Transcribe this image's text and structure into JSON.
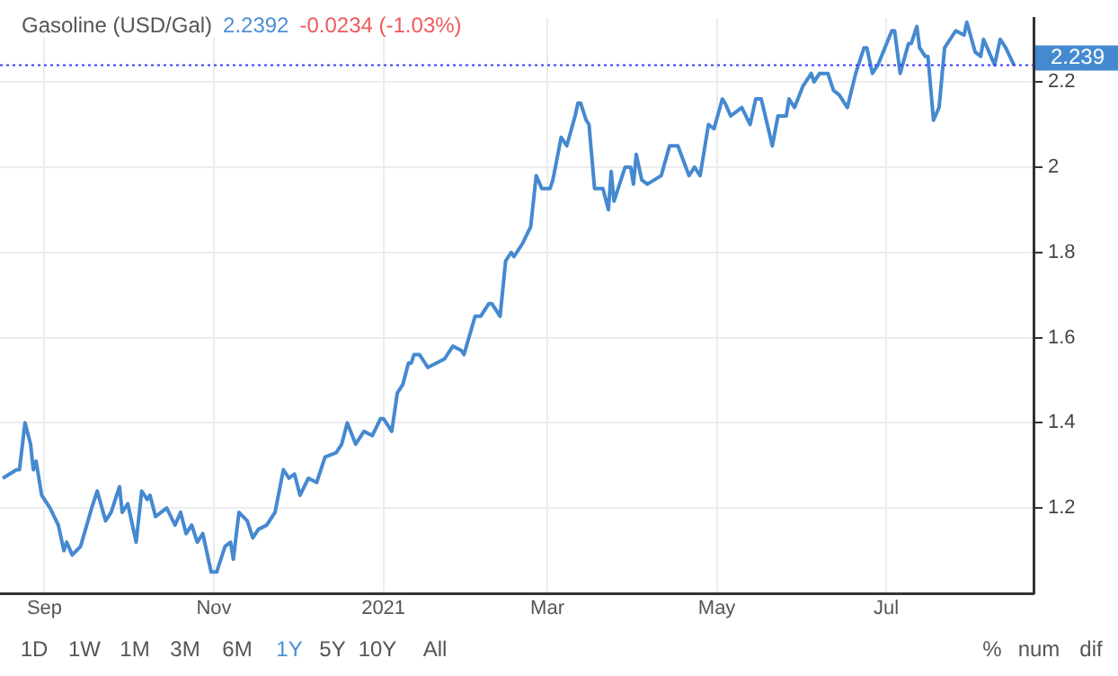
{
  "chart_data": {
    "type": "line",
    "title": "Gasoline (USD/Gal)",
    "annotations": [
      "2.2392",
      "-0.0234 (-1.03%)",
      "1D",
      "1W",
      "1M",
      "3M",
      "6M",
      "1Y",
      "5Y",
      "10Y",
      "All",
      "%",
      "num",
      "dif"
    ],
    "x": [
      "2020-08-17",
      "2020-08-22",
      "2020-08-23",
      "2020-08-25",
      "2020-08-27",
      "2020-08-28",
      "2020-08-29",
      "2020-08-31",
      "2020-09-03",
      "2020-09-06",
      "2020-09-08",
      "2020-09-09",
      "2020-09-11",
      "2020-09-14",
      "2020-09-18",
      "2020-09-20",
      "2020-09-23",
      "2020-09-25",
      "2020-09-28",
      "2020-09-29",
      "2020-10-01",
      "2020-10-04",
      "2020-10-06",
      "2020-10-08",
      "2020-10-09",
      "2020-10-11",
      "2020-10-15",
      "2020-10-18",
      "2020-10-20",
      "2020-10-22",
      "2020-10-24",
      "2020-10-26",
      "2020-10-28",
      "2020-10-31",
      "2020-11-02",
      "2020-11-05",
      "2020-11-07",
      "2020-11-08",
      "2020-11-10",
      "2020-11-13",
      "2020-11-15",
      "2020-11-17",
      "2020-11-20",
      "2020-11-23",
      "2020-11-26",
      "2020-11-28",
      "2020-11-30",
      "2020-12-02",
      "2020-12-05",
      "2020-12-08",
      "2020-12-11",
      "2020-12-15",
      "2020-12-17",
      "2020-12-19",
      "2020-12-22",
      "2020-12-25",
      "2020-12-28",
      "2020-12-31",
      "2021-01-01",
      "2021-01-04",
      "2021-01-06",
      "2021-01-08",
      "2021-01-10",
      "2021-01-11",
      "2021-01-12",
      "2021-01-14",
      "2021-01-17",
      "2021-01-20",
      "2021-01-23",
      "2021-01-26",
      "2021-01-29",
      "2021-01-30",
      "2021-02-03",
      "2021-02-05",
      "2021-02-08",
      "2021-02-09",
      "2021-02-12",
      "2021-02-14",
      "2021-02-16",
      "2021-02-17",
      "2021-02-20",
      "2021-02-23",
      "2021-02-25",
      "2021-02-27",
      "2021-03-02",
      "2021-03-03",
      "2021-03-06",
      "2021-03-08",
      "2021-03-11",
      "2021-03-12",
      "2021-03-13",
      "2021-03-15",
      "2021-03-16",
      "2021-03-18",
      "2021-03-21",
      "2021-03-23",
      "2021-03-24",
      "2021-03-25",
      "2021-03-29",
      "2021-03-31",
      "2021-04-01",
      "2021-04-02",
      "2021-04-04",
      "2021-04-06",
      "2021-04-11",
      "2021-04-14",
      "2021-04-17",
      "2021-04-21",
      "2021-04-23",
      "2021-04-25",
      "2021-04-28",
      "2021-04-30",
      "2021-05-03",
      "2021-05-04",
      "2021-05-06",
      "2021-05-10",
      "2021-05-13",
      "2021-05-15",
      "2021-05-17",
      "2021-05-21",
      "2021-05-23",
      "2021-05-26",
      "2021-05-27",
      "2021-05-29",
      "2021-06-01",
      "2021-06-04",
      "2021-06-05",
      "2021-06-07",
      "2021-06-10",
      "2021-06-12",
      "2021-06-14",
      "2021-06-17",
      "2021-06-20",
      "2021-06-23",
      "2021-06-24",
      "2021-06-26",
      "2021-06-28",
      "2021-07-03",
      "2021-07-04",
      "2021-07-06",
      "2021-07-09",
      "2021-07-10",
      "2021-07-12",
      "2021-07-13",
      "2021-07-15",
      "2021-07-16",
      "2021-07-18",
      "2021-07-20",
      "2021-07-22",
      "2021-07-26",
      "2021-07-29",
      "2021-07-30",
      "2021-08-02",
      "2021-08-04",
      "2021-08-05",
      "2021-08-09",
      "2021-08-11",
      "2021-08-13",
      "2021-08-16"
    ],
    "series": [
      {
        "color": "#4589d0",
        "values": [
          1.27,
          1.29,
          1.29,
          1.4,
          1.35,
          1.29,
          1.31,
          1.23,
          1.2,
          1.16,
          1.1,
          1.12,
          1.09,
          1.11,
          1.2,
          1.24,
          1.17,
          1.19,
          1.25,
          1.19,
          1.21,
          1.12,
          1.24,
          1.22,
          1.23,
          1.18,
          1.2,
          1.16,
          1.19,
          1.14,
          1.16,
          1.12,
          1.14,
          1.05,
          1.05,
          1.11,
          1.12,
          1.08,
          1.19,
          1.17,
          1.13,
          1.15,
          1.16,
          1.19,
          1.29,
          1.27,
          1.28,
          1.23,
          1.27,
          1.26,
          1.32,
          1.33,
          1.35,
          1.4,
          1.35,
          1.38,
          1.37,
          1.41,
          1.41,
          1.38,
          1.47,
          1.49,
          1.54,
          1.54,
          1.56,
          1.56,
          1.53,
          1.54,
          1.55,
          1.58,
          1.57,
          1.56,
          1.65,
          1.65,
          1.68,
          1.68,
          1.65,
          1.78,
          1.8,
          1.79,
          1.82,
          1.86,
          1.98,
          1.95,
          1.95,
          1.97,
          2.07,
          2.05,
          2.12,
          2.15,
          2.15,
          2.11,
          2.1,
          1.95,
          1.95,
          1.9,
          1.99,
          1.92,
          2,
          2,
          1.96,
          2.03,
          1.97,
          1.96,
          1.98,
          2.05,
          2.05,
          1.98,
          2,
          1.98,
          2.1,
          2.09,
          2.16,
          2.15,
          2.12,
          2.14,
          2.1,
          2.16,
          2.16,
          2.05,
          2.12,
          2.12,
          2.16,
          2.14,
          2.19,
          2.22,
          2.2,
          2.22,
          2.22,
          2.18,
          2.17,
          2.14,
          2.22,
          2.28,
          2.28,
          2.22,
          2.24,
          2.32,
          2.32,
          2.22,
          2.29,
          2.29,
          2.33,
          2.28,
          2.26,
          2.26,
          2.11,
          2.14,
          2.28,
          2.32,
          2.31,
          2.34,
          2.27,
          2.26,
          2.3,
          2.24,
          2.3,
          2.28,
          2.239
        ]
      }
    ],
    "xlim": [
      "2020-08-16",
      "2021-08-23"
    ],
    "xticks": [
      {
        "value": "2020-09-01",
        "label": "Sep"
      },
      {
        "value": "2020-11-01",
        "label": "Nov"
      },
      {
        "value": "2021-01-01",
        "label": "2021"
      },
      {
        "value": "2021-03-01",
        "label": "Mar"
      },
      {
        "value": "2021-05-01",
        "label": "May"
      },
      {
        "value": "2021-07-01",
        "label": "Jul"
      }
    ],
    "ylim": [
      1,
      2.35
    ],
    "yticks": [
      1.2,
      1.4,
      1.6,
      1.8,
      2,
      2.2
    ],
    "ref_lines": [
      {
        "axis": "y",
        "value": 2.239,
        "label": "2.239",
        "color": "#3b3bff",
        "line_style": "dotted"
      }
    ],
    "grid": true,
    "legend": false,
    "marker": "none",
    "line_style": "solid"
  }
}
